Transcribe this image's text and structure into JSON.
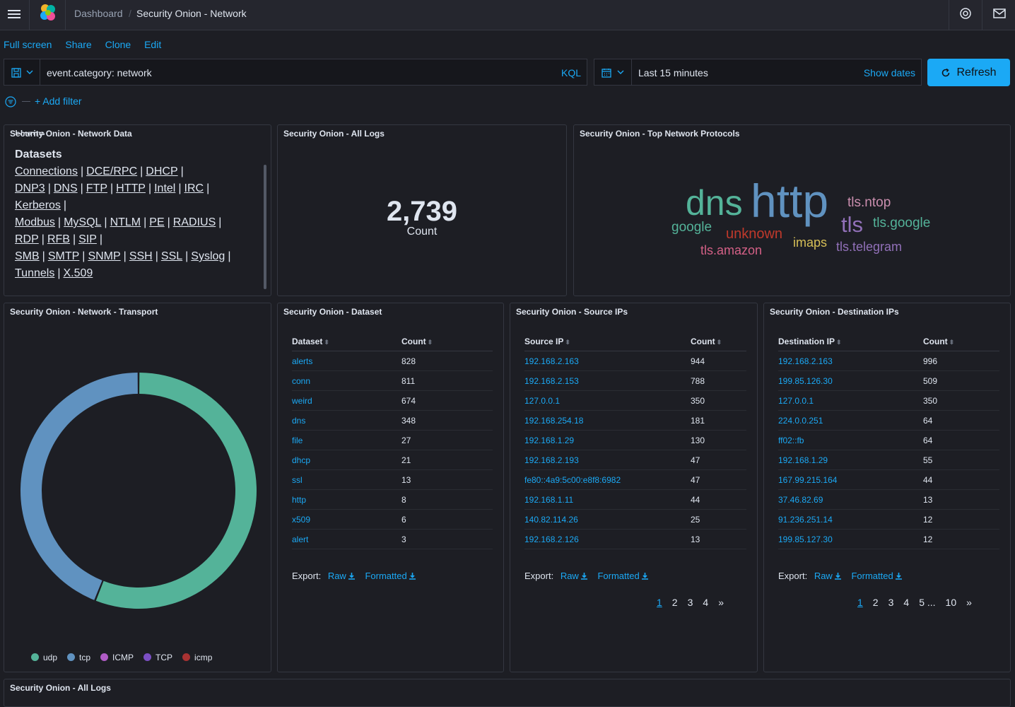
{
  "breadcrumb": {
    "root": "Dashboard",
    "current": "Security Onion - Network"
  },
  "menu": [
    "Full screen",
    "Share",
    "Clone",
    "Edit"
  ],
  "query": {
    "value": "event.category: network",
    "language": "KQL"
  },
  "time": {
    "range": "Last 15 minutes",
    "show_dates": "Show dates"
  },
  "refresh_label": "Refresh",
  "add_filter": "+ Add filter",
  "panels": {
    "network_data": {
      "title": "Security Onion - Network Data",
      "home": "Home",
      "heading": "Datasets",
      "links": [
        "Connections",
        "DCE/RPC",
        "DHCP",
        "DNP3",
        "DNS",
        "FTP",
        "HTTP",
        "Intel",
        "IRC",
        "Kerberos",
        "Modbus",
        "MySQL",
        "NTLM",
        "PE",
        "RADIUS",
        "RDP",
        "RFB",
        "SIP",
        "SMB",
        "SMTP",
        "SNMP",
        "SSH",
        "SSL",
        "Syslog",
        "Tunnels",
        "X.509"
      ]
    },
    "all_logs": {
      "title": "Security Onion - All Logs",
      "value": "2,739",
      "label": "Count"
    },
    "protocols": {
      "title": "Security Onion - Top Network Protocols",
      "words": [
        {
          "text": "dns",
          "color": "#54b399"
        },
        {
          "text": "http",
          "color": "#6092c0"
        },
        {
          "text": "tls.ntop",
          "color": "#ca8eae"
        },
        {
          "text": "tls",
          "color": "#9170b8"
        },
        {
          "text": "tls.google",
          "color": "#54b399"
        },
        {
          "text": "google",
          "color": "#54b399"
        },
        {
          "text": "unknown",
          "color": "#c0392b"
        },
        {
          "text": "imaps",
          "color": "#d6bf57"
        },
        {
          "text": "tls.amazon",
          "color": "#d36086"
        },
        {
          "text": "tls.telegram",
          "color": "#9170b8"
        }
      ]
    },
    "transport": {
      "title": "Security Onion - Network - Transport",
      "legend": [
        {
          "label": "udp",
          "color": "#54b399"
        },
        {
          "label": "tcp",
          "color": "#6092c0"
        },
        {
          "label": "ICMP",
          "color": "#b05cc6"
        },
        {
          "label": "TCP",
          "color": "#7b4fc4"
        },
        {
          "label": "icmp",
          "color": "#a83232"
        }
      ]
    },
    "dataset": {
      "title": "Security Onion - Dataset",
      "col1": "Dataset",
      "col2": "Count",
      "rows": [
        [
          "alerts",
          "828"
        ],
        [
          "conn",
          "811"
        ],
        [
          "weird",
          "674"
        ],
        [
          "dns",
          "348"
        ],
        [
          "file",
          "27"
        ],
        [
          "dhcp",
          "21"
        ],
        [
          "ssl",
          "13"
        ],
        [
          "http",
          "8"
        ],
        [
          "x509",
          "6"
        ],
        [
          "alert",
          "3"
        ]
      ]
    },
    "source_ips": {
      "title": "Security Onion - Source IPs",
      "col1": "Source IP",
      "col2": "Count",
      "rows": [
        [
          "192.168.2.163",
          "944"
        ],
        [
          "192.168.2.153",
          "788"
        ],
        [
          "127.0.0.1",
          "350"
        ],
        [
          "192.168.254.18",
          "181"
        ],
        [
          "192.168.1.29",
          "130"
        ],
        [
          "192.168.2.193",
          "47"
        ],
        [
          "fe80::4a9:5c00:e8f8:6982",
          "47"
        ],
        [
          "192.168.1.11",
          "44"
        ],
        [
          "140.82.114.26",
          "25"
        ],
        [
          "192.168.2.126",
          "13"
        ]
      ],
      "pages": [
        "1",
        "2",
        "3",
        "4",
        "»"
      ]
    },
    "dest_ips": {
      "title": "Security Onion - Destination IPs",
      "col1": "Destination IP",
      "col2": "Count",
      "rows": [
        [
          "192.168.2.163",
          "996"
        ],
        [
          "199.85.126.30",
          "509"
        ],
        [
          "127.0.0.1",
          "350"
        ],
        [
          "224.0.0.251",
          "64"
        ],
        [
          "ff02::fb",
          "64"
        ],
        [
          "192.168.1.29",
          "55"
        ],
        [
          "167.99.215.164",
          "44"
        ],
        [
          "37.46.82.69",
          "13"
        ],
        [
          "91.236.251.14",
          "12"
        ],
        [
          "199.85.127.30",
          "12"
        ]
      ],
      "pages": [
        "1",
        "2",
        "3",
        "4",
        "5 ...",
        "10",
        "»"
      ]
    },
    "all_logs_bottom": {
      "title": "Security Onion - All Logs"
    }
  },
  "export": {
    "label": "Export:",
    "raw": "Raw",
    "formatted": "Formatted"
  },
  "chart_data": {
    "type": "pie",
    "donut": true,
    "categories": [
      "udp",
      "tcp",
      "ICMP",
      "TCP",
      "icmp"
    ],
    "values": [
      56,
      44,
      0,
      0,
      0
    ],
    "legend_position": "bottom"
  }
}
